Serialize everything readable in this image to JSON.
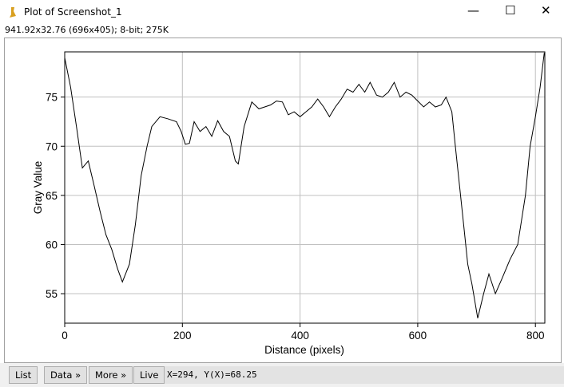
{
  "window": {
    "title": "Plot of Screenshot_1",
    "info": "941.92x32.76  (696x405); 8-bit; 275K"
  },
  "chart_data": {
    "type": "line",
    "xlabel": "Distance (pixels)",
    "ylabel": "Gray Value",
    "color": "#000000",
    "grid": true,
    "xlim": [
      0,
      816
    ],
    "ylim": [
      52,
      79.6
    ],
    "xticks": [
      0,
      200,
      400,
      600,
      800
    ],
    "yticks": [
      55,
      60,
      65,
      70,
      75
    ],
    "x": [
      0,
      10,
      20,
      30,
      40,
      50,
      60,
      70,
      80,
      90,
      98,
      110,
      120,
      130,
      140,
      148,
      162,
      175,
      190,
      198,
      205,
      212,
      220,
      230,
      240,
      250,
      260,
      270,
      280,
      290,
      295,
      305,
      318,
      330,
      340,
      350,
      360,
      370,
      380,
      390,
      400,
      410,
      420,
      430,
      440,
      450,
      460,
      470,
      480,
      490,
      500,
      510,
      519,
      530,
      540,
      550,
      560,
      570,
      580,
      590,
      600,
      610,
      620,
      630,
      640,
      648,
      658,
      664,
      671,
      678,
      685,
      692,
      702,
      712,
      721,
      732,
      743,
      757,
      770,
      783,
      791,
      800,
      808,
      815
    ],
    "values": [
      79,
      76,
      72,
      67.8,
      68.5,
      66,
      63.4,
      61,
      59.5,
      57.5,
      56.2,
      58,
      62,
      67,
      70,
      72,
      73,
      72.8,
      72.5,
      71.5,
      70.2,
      70.3,
      72.5,
      71.5,
      72,
      71,
      72.6,
      71.5,
      71,
      68.5,
      68.2,
      72,
      74.5,
      73.8,
      74,
      74.2,
      74.6,
      74.5,
      73.2,
      73.5,
      73,
      73.5,
      74,
      74.8,
      74,
      73,
      74,
      74.8,
      75.8,
      75.5,
      76.3,
      75.5,
      76.5,
      75.2,
      75,
      75.5,
      76.5,
      75,
      75.5,
      75.2,
      74.6,
      74,
      74.5,
      74,
      74.2,
      75,
      73.5,
      70,
      66,
      62,
      58,
      56,
      52.5,
      55,
      57,
      55,
      56.5,
      58.5,
      60,
      65,
      70,
      73,
      76,
      79.5
    ]
  },
  "buttons": [
    "List",
    "Data »",
    "More »",
    "Live"
  ],
  "status": "X=294, Y(X)=68.25"
}
